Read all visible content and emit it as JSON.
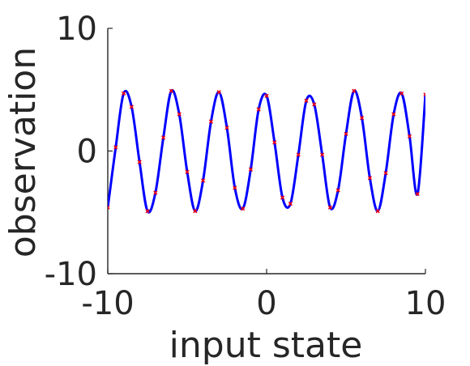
{
  "chart_data": {
    "type": "scatter",
    "title": "",
    "xlabel": "input state",
    "ylabel": "observation",
    "xlim": [
      -10,
      10
    ],
    "ylim": [
      -10,
      10
    ],
    "xticks": [
      -10,
      0,
      10
    ],
    "yticks": [
      -10,
      0,
      10
    ],
    "xtick_labels": [
      "-10",
      "0",
      "10"
    ],
    "ytick_labels": [
      "-10",
      "0",
      "10"
    ],
    "grid": false,
    "series": [
      {
        "type": "line",
        "color": "#0000ff",
        "x": [
          -10.0,
          -9.5,
          -9.0,
          -8.5,
          -8.0,
          -7.5,
          -7.0,
          -6.5,
          -6.0,
          -5.5,
          -5.0,
          -4.5,
          -4.0,
          -3.5,
          -3.0,
          -2.5,
          -2.0,
          -1.5,
          -1.0,
          -0.5,
          0.0,
          0.5,
          1.0,
          1.5,
          2.0,
          2.5,
          3.0,
          3.5,
          4.0,
          4.5,
          5.0,
          5.5,
          6.0,
          6.5,
          7.0,
          7.5,
          8.0,
          8.5,
          9.0,
          9.5,
          10.0
        ],
        "y": [
          -4.6,
          0.3,
          4.7,
          3.6,
          -0.9,
          -4.9,
          -3.4,
          1.1,
          4.9,
          3.0,
          -1.7,
          -4.9,
          -2.4,
          2.4,
          4.8,
          1.9,
          -3.0,
          -4.7,
          -1.5,
          3.4,
          4.5,
          0.7,
          -3.8,
          -4.3,
          -0.3,
          4.1,
          3.8,
          -0.3,
          -4.6,
          -3.2,
          1.4,
          4.9,
          2.7,
          -2.2,
          -4.9,
          -1.8,
          3.0,
          4.7,
          1.2,
          -3.5,
          4.6
        ]
      },
      {
        "type": "scatter",
        "color": "#ff0000",
        "marker": "x",
        "x": [
          -10.0,
          -9.5,
          -9.0,
          -8.5,
          -8.0,
          -7.5,
          -7.0,
          -6.5,
          -6.0,
          -5.5,
          -5.0,
          -4.5,
          -4.0,
          -3.5,
          -3.0,
          -2.5,
          -2.0,
          -1.5,
          -1.0,
          -0.5,
          0.0,
          0.5,
          1.0,
          1.5,
          2.0,
          2.5,
          3.0,
          3.5,
          4.0,
          4.5,
          5.0,
          5.5,
          6.0,
          6.5,
          7.0,
          7.5,
          8.0,
          8.5,
          9.0,
          9.5,
          10.0
        ],
        "y": [
          -4.6,
          0.3,
          4.7,
          3.6,
          -0.9,
          -4.9,
          -3.4,
          1.1,
          4.9,
          3.0,
          -1.7,
          -4.9,
          -2.4,
          2.4,
          4.8,
          1.9,
          -3.0,
          -4.7,
          -1.5,
          3.4,
          4.5,
          0.7,
          -3.8,
          -4.3,
          -0.3,
          4.1,
          3.8,
          -0.3,
          -4.6,
          -3.2,
          1.4,
          4.9,
          2.7,
          -2.2,
          -4.9,
          -1.8,
          3.0,
          4.7,
          1.2,
          -3.5,
          4.6
        ]
      }
    ]
  }
}
